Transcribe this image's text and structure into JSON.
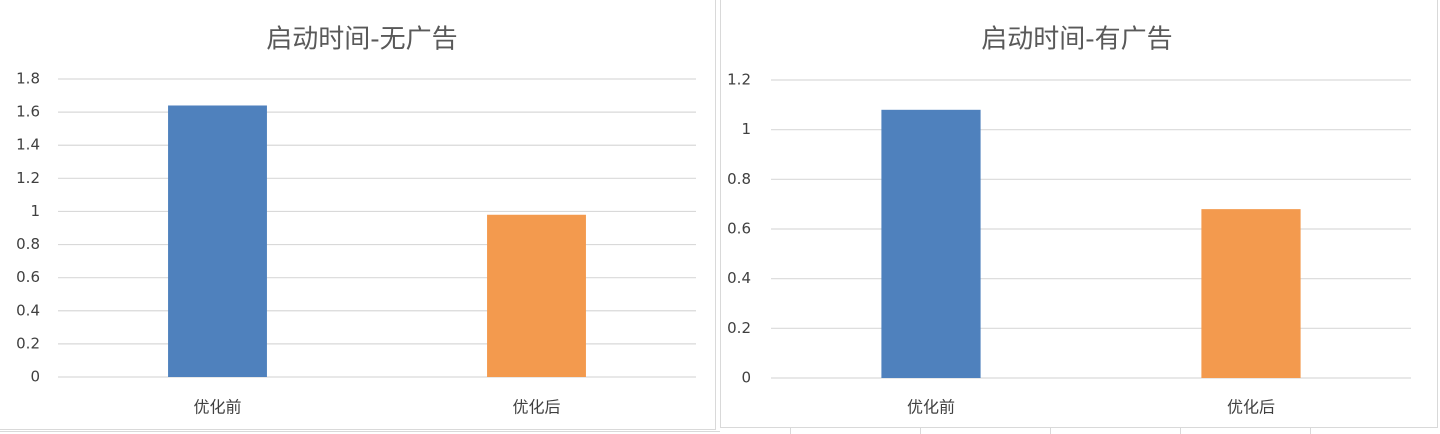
{
  "colors": {
    "blue": "#4f81bd",
    "orange": "#f39a4e",
    "grid": "#d9d9d9",
    "text": "#404040",
    "title": "#595959"
  },
  "chart_data": [
    {
      "type": "bar",
      "title": "启动时间-无广告",
      "categories": [
        "优化前",
        "优化后"
      ],
      "values": [
        1.64,
        0.98
      ],
      "bar_colors": [
        "#4f81bd",
        "#f39a4e"
      ],
      "ylim": [
        0,
        1.8
      ],
      "yticks": [
        "0",
        "0.2",
        "0.4",
        "0.6",
        "0.8",
        "1",
        "1.2",
        "1.4",
        "1.6",
        "1.8"
      ],
      "xlabel": "",
      "ylabel": "",
      "grid": true
    },
    {
      "type": "bar",
      "title": "启动时间-有广告",
      "categories": [
        "优化前",
        "优化后"
      ],
      "values": [
        1.08,
        0.68
      ],
      "bar_colors": [
        "#4f81bd",
        "#f39a4e"
      ],
      "ylim": [
        0,
        1.2
      ],
      "yticks": [
        "0",
        "0.2",
        "0.4",
        "0.6",
        "0.8",
        "1",
        "1.2"
      ],
      "xlabel": "",
      "ylabel": "",
      "grid": true
    }
  ]
}
